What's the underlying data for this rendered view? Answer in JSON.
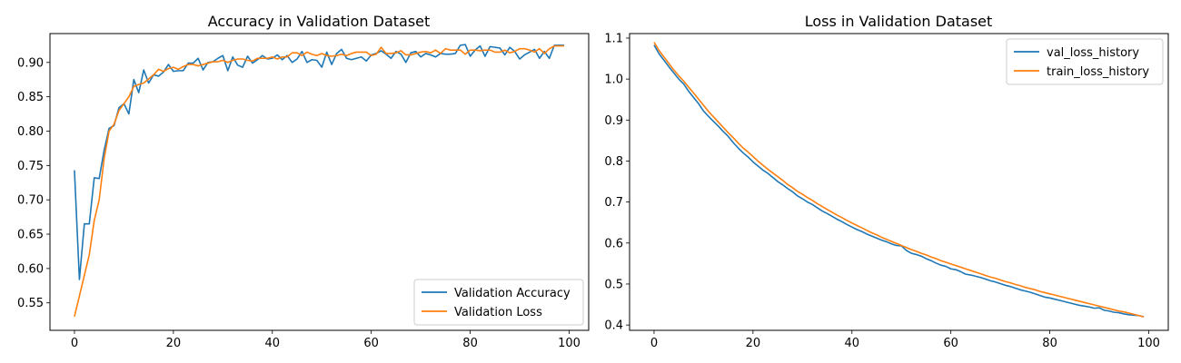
{
  "colors": {
    "series1": "#1f77b4",
    "series2": "#ff7f0e",
    "axis": "#000000",
    "legend_border": "#cccccc"
  },
  "chart_data": [
    {
      "type": "line",
      "title": "Accuracy in Validation Dataset",
      "xlabel": "",
      "ylabel": "",
      "xlim": [
        -4.95,
        103.95
      ],
      "ylim": [
        0.51,
        0.942
      ],
      "xticks": [
        0,
        20,
        40,
        60,
        80,
        100
      ],
      "xtick_labels": [
        "0",
        "20",
        "40",
        "60",
        "80",
        "100"
      ],
      "yticks": [
        0.55,
        0.6,
        0.65,
        0.7,
        0.75,
        0.8,
        0.85,
        0.9
      ],
      "ytick_labels": [
        "0.55",
        "0.60",
        "0.65",
        "0.70",
        "0.75",
        "0.80",
        "0.85",
        "0.90"
      ],
      "legend_position": "lower-right",
      "grid": false,
      "x": [
        0,
        1,
        2,
        3,
        4,
        5,
        6,
        7,
        8,
        9,
        10,
        11,
        12,
        13,
        14,
        15,
        16,
        17,
        18,
        19,
        20,
        21,
        22,
        23,
        24,
        25,
        26,
        27,
        28,
        29,
        30,
        31,
        32,
        33,
        34,
        35,
        36,
        37,
        38,
        39,
        40,
        41,
        42,
        43,
        44,
        45,
        46,
        47,
        48,
        49,
        50,
        51,
        52,
        53,
        54,
        55,
        56,
        57,
        58,
        59,
        60,
        61,
        62,
        63,
        64,
        65,
        66,
        67,
        68,
        69,
        70,
        71,
        72,
        73,
        74,
        75,
        76,
        77,
        78,
        79,
        80,
        81,
        82,
        83,
        84,
        85,
        86,
        87,
        88,
        89,
        90,
        91,
        92,
        93,
        94,
        95,
        96,
        97,
        98,
        99
      ],
      "series": [
        {
          "name": "Validation Accuracy",
          "color": "#1f77b4",
          "values": [
            0.743,
            0.584,
            0.665,
            0.665,
            0.732,
            0.731,
            0.772,
            0.804,
            0.808,
            0.834,
            0.84,
            0.825,
            0.875,
            0.856,
            0.889,
            0.87,
            0.882,
            0.88,
            0.886,
            0.897,
            0.887,
            0.888,
            0.888,
            0.899,
            0.899,
            0.906,
            0.889,
            0.9,
            0.901,
            0.906,
            0.91,
            0.888,
            0.908,
            0.896,
            0.893,
            0.909,
            0.899,
            0.904,
            0.91,
            0.905,
            0.906,
            0.911,
            0.904,
            0.91,
            0.9,
            0.905,
            0.916,
            0.9,
            0.904,
            0.903,
            0.893,
            0.915,
            0.897,
            0.913,
            0.919,
            0.906,
            0.904,
            0.906,
            0.908,
            0.902,
            0.911,
            0.913,
            0.917,
            0.912,
            0.906,
            0.916,
            0.912,
            0.9,
            0.914,
            0.916,
            0.908,
            0.913,
            0.911,
            0.908,
            0.913,
            0.912,
            0.912,
            0.913,
            0.925,
            0.926,
            0.909,
            0.918,
            0.924,
            0.909,
            0.923,
            0.922,
            0.921,
            0.911,
            0.922,
            0.916,
            0.905,
            0.911,
            0.915,
            0.919,
            0.906,
            0.916,
            0.906,
            0.925,
            0.925,
            0.925
          ]
        },
        {
          "name": "Validation Loss",
          "color": "#ff7f0e",
          "values": [
            0.53,
            0.56,
            0.59,
            0.62,
            0.67,
            0.7,
            0.76,
            0.8,
            0.81,
            0.83,
            0.84,
            0.85,
            0.865,
            0.868,
            0.87,
            0.876,
            0.882,
            0.89,
            0.887,
            0.891,
            0.893,
            0.89,
            0.894,
            0.897,
            0.897,
            0.895,
            0.897,
            0.899,
            0.901,
            0.901,
            0.903,
            0.9,
            0.903,
            0.905,
            0.905,
            0.903,
            0.902,
            0.906,
            0.906,
            0.906,
            0.908,
            0.905,
            0.908,
            0.908,
            0.914,
            0.914,
            0.91,
            0.915,
            0.912,
            0.91,
            0.913,
            0.91,
            0.909,
            0.91,
            0.912,
            0.91,
            0.913,
            0.915,
            0.915,
            0.915,
            0.91,
            0.912,
            0.922,
            0.913,
            0.913,
            0.914,
            0.917,
            0.911,
            0.911,
            0.913,
            0.915,
            0.916,
            0.914,
            0.918,
            0.913,
            0.92,
            0.918,
            0.918,
            0.918,
            0.912,
            0.918,
            0.918,
            0.917,
            0.918,
            0.918,
            0.915,
            0.915,
            0.918,
            0.914,
            0.916,
            0.92,
            0.92,
            0.918,
            0.915,
            0.92,
            0.913,
            0.92,
            0.924,
            0.924,
            0.924
          ]
        }
      ]
    },
    {
      "type": "line",
      "title": "Loss in Validation Dataset",
      "xlabel": "",
      "ylabel": "",
      "xlim": [
        -4.95,
        103.95
      ],
      "ylim": [
        0.387,
        1.111
      ],
      "xticks": [
        0,
        20,
        40,
        60,
        80,
        100
      ],
      "xtick_labels": [
        "0",
        "20",
        "40",
        "60",
        "80",
        "100"
      ],
      "yticks": [
        0.4,
        0.5,
        0.6,
        0.7,
        0.8,
        0.9,
        1.0,
        1.1
      ],
      "ytick_labels": [
        "0.4",
        "0.5",
        "0.6",
        "0.7",
        "0.8",
        "0.9",
        "1.0",
        "1.1"
      ],
      "legend_position": "upper-right",
      "grid": false,
      "x": [
        0,
        1,
        2,
        3,
        4,
        5,
        6,
        7,
        8,
        9,
        10,
        11,
        12,
        13,
        14,
        15,
        16,
        17,
        18,
        19,
        20,
        21,
        22,
        23,
        24,
        25,
        26,
        27,
        28,
        29,
        30,
        31,
        32,
        33,
        34,
        35,
        36,
        37,
        38,
        39,
        40,
        41,
        42,
        43,
        44,
        45,
        46,
        47,
        48,
        49,
        50,
        51,
        52,
        53,
        54,
        55,
        56,
        57,
        58,
        59,
        60,
        61,
        62,
        63,
        64,
        65,
        66,
        67,
        68,
        69,
        70,
        71,
        72,
        73,
        74,
        75,
        76,
        77,
        78,
        79,
        80,
        81,
        82,
        83,
        84,
        85,
        86,
        87,
        88,
        89,
        90,
        91,
        92,
        93,
        94,
        95,
        96,
        97,
        98,
        99
      ],
      "series": [
        {
          "name": "val_loss_history",
          "color": "#1f77b4",
          "values": [
            1.083,
            1.062,
            1.046,
            1.03,
            1.015,
            1.0,
            0.988,
            0.97,
            0.955,
            0.94,
            0.922,
            0.909,
            0.897,
            0.885,
            0.872,
            0.86,
            0.845,
            0.832,
            0.82,
            0.81,
            0.798,
            0.788,
            0.778,
            0.77,
            0.76,
            0.75,
            0.742,
            0.733,
            0.725,
            0.715,
            0.708,
            0.7,
            0.694,
            0.686,
            0.678,
            0.672,
            0.665,
            0.658,
            0.652,
            0.645,
            0.639,
            0.633,
            0.628,
            0.622,
            0.617,
            0.612,
            0.607,
            0.603,
            0.598,
            0.594,
            0.593,
            0.582,
            0.575,
            0.572,
            0.568,
            0.562,
            0.557,
            0.551,
            0.546,
            0.543,
            0.537,
            0.535,
            0.53,
            0.524,
            0.522,
            0.519,
            0.516,
            0.512,
            0.508,
            0.505,
            0.501,
            0.497,
            0.494,
            0.49,
            0.486,
            0.483,
            0.48,
            0.476,
            0.472,
            0.468,
            0.466,
            0.463,
            0.46,
            0.457,
            0.454,
            0.451,
            0.448,
            0.446,
            0.444,
            0.441,
            0.442,
            0.436,
            0.434,
            0.431,
            0.43,
            0.427,
            0.425,
            0.424,
            0.423,
            0.42
          ]
        },
        {
          "name": "train_loss_history",
          "color": "#ff7f0e",
          "values": [
            1.09,
            1.07,
            1.054,
            1.038,
            1.022,
            1.008,
            0.995,
            0.98,
            0.966,
            0.951,
            0.936,
            0.921,
            0.908,
            0.895,
            0.882,
            0.869,
            0.857,
            0.844,
            0.832,
            0.822,
            0.811,
            0.8,
            0.79,
            0.78,
            0.771,
            0.762,
            0.753,
            0.743,
            0.735,
            0.726,
            0.719,
            0.711,
            0.704,
            0.696,
            0.689,
            0.682,
            0.675,
            0.668,
            0.662,
            0.655,
            0.649,
            0.643,
            0.637,
            0.631,
            0.625,
            0.62,
            0.614,
            0.609,
            0.604,
            0.599,
            0.594,
            0.589,
            0.584,
            0.58,
            0.575,
            0.571,
            0.566,
            0.562,
            0.557,
            0.553,
            0.549,
            0.545,
            0.541,
            0.537,
            0.533,
            0.529,
            0.525,
            0.521,
            0.517,
            0.514,
            0.51,
            0.506,
            0.503,
            0.499,
            0.496,
            0.492,
            0.489,
            0.486,
            0.482,
            0.479,
            0.476,
            0.473,
            0.47,
            0.467,
            0.464,
            0.461,
            0.458,
            0.455,
            0.452,
            0.449,
            0.446,
            0.443,
            0.44,
            0.437,
            0.434,
            0.432,
            0.429,
            0.426,
            0.423,
            0.42
          ]
        }
      ]
    }
  ]
}
